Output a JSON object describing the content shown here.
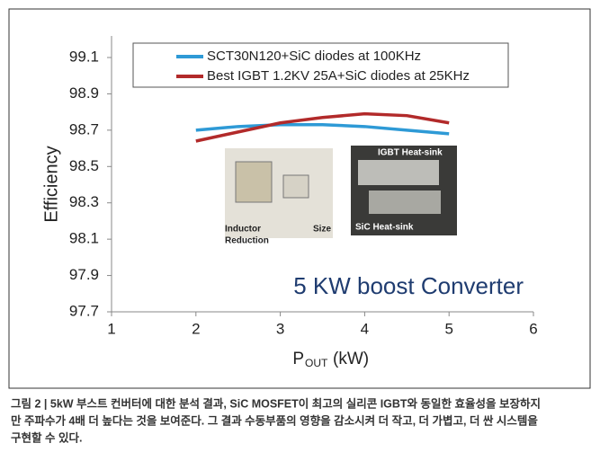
{
  "chart_data": {
    "type": "line",
    "x": [
      2,
      2.5,
      3,
      3.5,
      4,
      4.5,
      5
    ],
    "series": [
      {
        "name": "SCT30N120+SiC diodes at 100KHz",
        "color": "#2e9ad6",
        "values": [
          98.7,
          98.72,
          98.73,
          98.73,
          98.72,
          98.7,
          98.68
        ]
      },
      {
        "name": "Best IGBT 1.2KV 25A+SiC diodes at 25KHz",
        "color": "#b22a2a",
        "values": [
          98.64,
          98.69,
          98.74,
          98.77,
          98.79,
          98.78,
          98.74
        ]
      }
    ],
    "xlim": [
      1,
      6
    ],
    "xticks": [
      1,
      2,
      3,
      4,
      5,
      6
    ],
    "ylim": [
      97.7,
      99.1
    ],
    "yticks": [
      97.7,
      97.9,
      98.1,
      98.3,
      98.5,
      98.7,
      98.9,
      99.1
    ],
    "ylabel": "Efficiency",
    "xlabel": "P",
    "xlabel_sub": "OUT",
    "xlabel_unit": "(kW)",
    "annotation": "5 KW boost Converter",
    "photo_labels": [
      "Inductor",
      "Reduction",
      "Size",
      "IGBT Heat-sink",
      "SiC Heat-sink"
    ],
    "grid": false
  },
  "caption": [
    "그림 2 | 5kW 부스트 컨버터에 대한 분석 결과, SiC MOSFET이 최고의 실리콘 IGBT와 동일한 효율성을 보장하지",
    "만 주파수가 4배 더 높다는 것을 보여준다. 그 결과 수동부품의 영향을 감소시켜 더 작고, 더 가볍고, 더 싼 시스템을",
    "구현할 수 있다."
  ]
}
